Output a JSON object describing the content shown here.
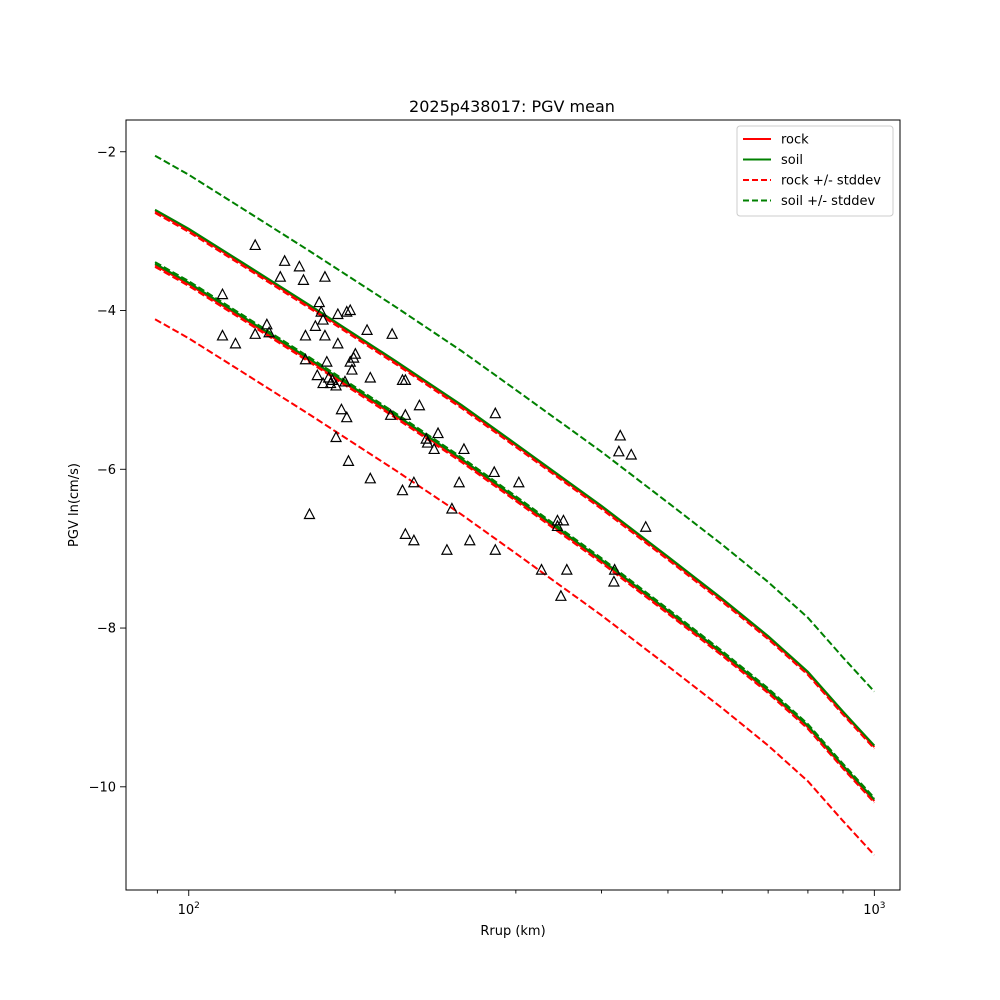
{
  "chart_data": {
    "type": "line",
    "title": "2025p438017: PGV mean",
    "xlabel": "Rrup (km)",
    "ylabel": "PGV ln(cm/s)",
    "xscale": "log",
    "xlim": [
      81,
      1090
    ],
    "ylim": [
      -11.3,
      -1.6
    ],
    "x_ticks": [
      {
        "value": 100,
        "base": "10",
        "exp": "2"
      },
      {
        "value": 1000,
        "base": "10",
        "exp": "3"
      }
    ],
    "y_ticks": [
      {
        "value": -2,
        "label": "−2"
      },
      {
        "value": -4,
        "label": "−4"
      },
      {
        "value": -6,
        "label": "−6"
      },
      {
        "value": -8,
        "label": "−8"
      },
      {
        "value": -10,
        "label": "−10"
      }
    ],
    "legend_position": "top-right",
    "series": [
      {
        "name": "rock",
        "color": "#ff0000",
        "dash": "solid",
        "x": [
          89.3,
          100,
          120,
          150,
          200,
          250,
          300,
          400,
          500,
          600,
          700,
          800,
          900,
          1000
        ],
        "y": [
          -3.43,
          -3.67,
          -4.1,
          -4.63,
          -5.33,
          -5.89,
          -6.38,
          -7.16,
          -7.8,
          -8.33,
          -8.8,
          -9.25,
          -9.75,
          -10.18
        ]
      },
      {
        "name": "",
        "color": "#ff0000",
        "dash": "solid",
        "x": [
          89.3,
          100,
          120,
          150,
          200,
          250,
          300,
          400,
          500,
          600,
          700,
          800,
          900,
          1000
        ],
        "y": [
          -2.75,
          -2.99,
          -3.42,
          -3.95,
          -4.65,
          -5.21,
          -5.7,
          -6.48,
          -7.12,
          -7.65,
          -8.12,
          -8.57,
          -9.07,
          -9.5
        ]
      },
      {
        "name": "soil",
        "color": "#008000",
        "dash": "solid",
        "x": [
          89.3,
          100,
          120,
          150,
          200,
          250,
          300,
          400,
          500,
          600,
          700,
          800,
          900,
          1000
        ],
        "y": [
          -3.41,
          -3.65,
          -4.08,
          -4.61,
          -5.31,
          -5.87,
          -6.36,
          -7.14,
          -7.78,
          -8.31,
          -8.78,
          -9.23,
          -9.73,
          -10.16
        ]
      },
      {
        "name": "",
        "color": "#008000",
        "dash": "solid",
        "x": [
          89.3,
          100,
          120,
          150,
          200,
          250,
          300,
          400,
          500,
          600,
          700,
          800,
          900,
          1000
        ],
        "y": [
          -2.73,
          -2.97,
          -3.4,
          -3.93,
          -4.63,
          -5.19,
          -5.68,
          -6.46,
          -7.1,
          -7.63,
          -8.1,
          -8.55,
          -9.05,
          -9.48
        ]
      },
      {
        "name": "rock +/- stddev",
        "color": "#ff0000",
        "dash": "dashed",
        "x": [
          89.3,
          100,
          120,
          150,
          200,
          250,
          300,
          400,
          500,
          600,
          700,
          800,
          900,
          1000
        ],
        "y": [
          -4.11,
          -4.35,
          -4.78,
          -5.31,
          -6.01,
          -6.57,
          -7.06,
          -7.84,
          -8.48,
          -9.01,
          -9.48,
          -9.93,
          -10.43,
          -10.86
        ]
      },
      {
        "name": "",
        "color": "#ff0000",
        "dash": "dashed",
        "x": [
          89.3,
          100,
          120,
          150,
          200,
          250,
          300,
          400,
          500,
          600,
          700,
          800,
          900,
          1000
        ],
        "y": [
          -2.77,
          -3.01,
          -3.44,
          -3.97,
          -4.67,
          -5.23,
          -5.72,
          -6.5,
          -7.14,
          -7.67,
          -8.14,
          -8.59,
          -9.09,
          -9.52
        ]
      },
      {
        "name": "",
        "color": "#ff0000",
        "dash": "dashed",
        "x": [
          89.3,
          100,
          120,
          150,
          200,
          250,
          300,
          400,
          500,
          600,
          700,
          800,
          900,
          1000
        ],
        "y": [
          -3.45,
          -3.69,
          -4.12,
          -4.65,
          -5.35,
          -5.91,
          -6.4,
          -7.18,
          -7.82,
          -8.35,
          -8.82,
          -9.27,
          -9.77,
          -10.2
        ]
      },
      {
        "name": "soil +/- stddev",
        "color": "#008000",
        "dash": "dashed",
        "x": [
          89.3,
          100,
          120,
          150,
          200,
          250,
          300,
          400,
          500,
          600,
          700,
          800,
          900,
          1000
        ],
        "y": [
          -2.05,
          -2.29,
          -2.72,
          -3.25,
          -3.95,
          -4.51,
          -5.0,
          -5.78,
          -6.42,
          -6.95,
          -7.42,
          -7.87,
          -8.37,
          -8.8
        ]
      },
      {
        "name": "",
        "color": "#008000",
        "dash": "dashed",
        "x": [
          89.3,
          100,
          120,
          150,
          200,
          250,
          300,
          400,
          500,
          600,
          700,
          800,
          900,
          1000
        ],
        "y": [
          -3.39,
          -3.63,
          -4.06,
          -4.59,
          -5.29,
          -5.85,
          -6.34,
          -7.12,
          -7.76,
          -8.29,
          -8.76,
          -9.21,
          -9.71,
          -10.14
        ]
      }
    ],
    "observations": {
      "marker": "triangle",
      "points": [
        [
          112,
          -3.8
        ],
        [
          112,
          -4.32
        ],
        [
          117,
          -4.42
        ],
        [
          125,
          -3.18
        ],
        [
          125,
          -4.3
        ],
        [
          130,
          -4.18
        ],
        [
          131,
          -4.28
        ],
        [
          136,
          -3.58
        ],
        [
          138,
          -3.38
        ],
        [
          145,
          -3.45
        ],
        [
          147,
          -3.62
        ],
        [
          148,
          -4.62
        ],
        [
          148,
          -4.32
        ],
        [
          153,
          -4.2
        ],
        [
          154,
          -4.82
        ],
        [
          155,
          -3.9
        ],
        [
          156,
          -4.02
        ],
        [
          157,
          -4.92
        ],
        [
          157,
          -4.12
        ],
        [
          158,
          -4.32
        ],
        [
          158,
          -3.58
        ],
        [
          159,
          -4.65
        ],
        [
          160,
          -4.85
        ],
        [
          161,
          -4.92
        ],
        [
          162,
          -4.88
        ],
        [
          164,
          -4.95
        ],
        [
          164,
          -5.6
        ],
        [
          165,
          -4.05
        ],
        [
          165,
          -4.42
        ],
        [
          167,
          -5.25
        ],
        [
          169,
          -4.9
        ],
        [
          170,
          -4.02
        ],
        [
          170,
          -5.35
        ],
        [
          171,
          -5.9
        ],
        [
          172,
          -4.0
        ],
        [
          172,
          -4.65
        ],
        [
          173,
          -4.75
        ],
        [
          174,
          -4.6
        ],
        [
          175,
          -4.55
        ],
        [
          182,
          -4.25
        ],
        [
          184,
          -4.85
        ],
        [
          184,
          -6.12
        ],
        [
          150,
          -6.57
        ],
        [
          197,
          -5.32
        ],
        [
          198,
          -4.3
        ],
        [
          205,
          -4.88
        ],
        [
          205,
          -6.27
        ],
        [
          207,
          -4.88
        ],
        [
          207,
          -5.32
        ],
        [
          207,
          -6.82
        ],
        [
          213,
          -6.17
        ],
        [
          213,
          -6.9
        ],
        [
          217,
          -5.2
        ],
        [
          222,
          -5.62
        ],
        [
          223,
          -5.67
        ],
        [
          228,
          -5.75
        ],
        [
          231,
          -5.55
        ],
        [
          238,
          -7.02
        ],
        [
          242,
          -6.5
        ],
        [
          248,
          -6.17
        ],
        [
          252,
          -5.75
        ],
        [
          257,
          -6.9
        ],
        [
          279,
          -6.04
        ],
        [
          280,
          -5.3
        ],
        [
          280,
          -7.02
        ],
        [
          303,
          -6.17
        ],
        [
          327,
          -7.27
        ],
        [
          345,
          -6.65
        ],
        [
          345,
          -6.72
        ],
        [
          349,
          -7.6
        ],
        [
          352,
          -6.65
        ],
        [
          356,
          -7.27
        ],
        [
          417,
          -7.42
        ],
        [
          418,
          -7.27
        ],
        [
          424,
          -5.78
        ],
        [
          426,
          -5.58
        ],
        [
          442,
          -5.82
        ],
        [
          464,
          -6.73
        ]
      ]
    }
  }
}
